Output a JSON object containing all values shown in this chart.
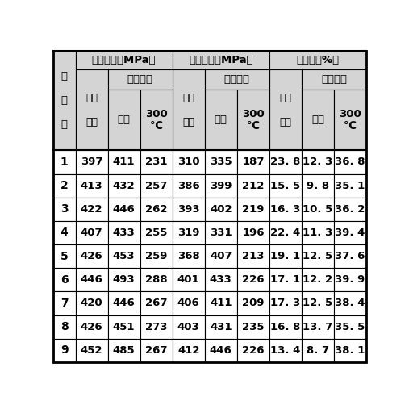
{
  "col_headers_level1": [
    "抗拉强度（MPa）",
    "屈服强度（MPa）",
    "延伸率（%）"
  ],
  "row_label": "实\n\n施\n\n例",
  "header_ercijiya": "二次\n\n挤压",
  "header_shixiao": "时效处理",
  "header_shiweng": "室温",
  "header_300c": "300\n℃",
  "rows": [
    {
      "id": "1",
      "vals": [
        "397",
        "411",
        "231",
        "310",
        "335",
        "187",
        "23. 8",
        "12. 3",
        "36. 8"
      ]
    },
    {
      "id": "2",
      "vals": [
        "413",
        "432",
        "257",
        "386",
        "399",
        "212",
        "15. 5",
        "9. 8",
        "35. 1"
      ]
    },
    {
      "id": "3",
      "vals": [
        "422",
        "446",
        "262",
        "393",
        "402",
        "219",
        "16. 3",
        "10. 5",
        "36. 2"
      ]
    },
    {
      "id": "4",
      "vals": [
        "407",
        "433",
        "255",
        "319",
        "331",
        "196",
        "22. 4",
        "11. 3",
        "39. 4"
      ]
    },
    {
      "id": "5",
      "vals": [
        "426",
        "453",
        "259",
        "368",
        "407",
        "213",
        "19. 1",
        "12. 5",
        "37. 6"
      ]
    },
    {
      "id": "6",
      "vals": [
        "446",
        "493",
        "288",
        "401",
        "433",
        "226",
        "17. 1",
        "12. 2",
        "39. 9"
      ]
    },
    {
      "id": "7",
      "vals": [
        "420",
        "446",
        "267",
        "406",
        "411",
        "209",
        "17. 3",
        "12. 5",
        "38. 4"
      ]
    },
    {
      "id": "8",
      "vals": [
        "426",
        "451",
        "273",
        "403",
        "431",
        "235",
        "16. 8",
        "13. 7",
        "35. 5"
      ]
    },
    {
      "id": "9",
      "vals": [
        "452",
        "485",
        "267",
        "412",
        "446",
        "226",
        "13. 4",
        "8. 7",
        "38. 1"
      ]
    }
  ],
  "bg_color": "#ffffff",
  "line_color": "#000000",
  "header_bg": "#d4d4d4"
}
